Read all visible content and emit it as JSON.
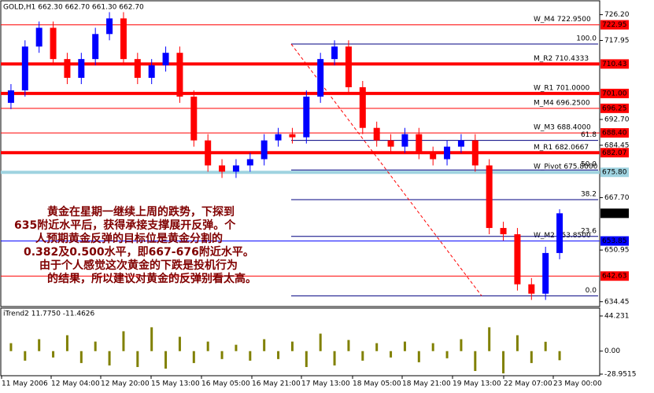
{
  "chart_data": {
    "type": "candlestick",
    "title": "GOLD,H1 662.30 662.70 661.30 662.70",
    "open": [
      698,
      702,
      716,
      722,
      712,
      706,
      712,
      720,
      725,
      712,
      706,
      710,
      714,
      700,
      686,
      678,
      676,
      678,
      680,
      686,
      688,
      687,
      700,
      712,
      716,
      703,
      690,
      686,
      684,
      688,
      682,
      680,
      684,
      686,
      678,
      658,
      656,
      640,
      637,
      650
    ],
    "high": [
      704,
      718,
      724,
      724,
      714,
      714,
      722,
      727,
      727,
      714,
      712,
      716,
      716,
      702,
      688,
      680,
      680,
      682,
      688,
      690,
      690,
      702,
      714,
      718,
      718,
      705,
      692,
      688,
      690,
      690,
      684,
      686,
      688,
      688,
      680,
      660,
      658,
      642,
      652,
      664
    ],
    "low": [
      696,
      700,
      714,
      710,
      704,
      704,
      710,
      718,
      710,
      704,
      704,
      708,
      698,
      684,
      676,
      674,
      674,
      676,
      678,
      684,
      685,
      685,
      698,
      710,
      701,
      688,
      684,
      682,
      682,
      680,
      678,
      678,
      682,
      676,
      656,
      654,
      638,
      635,
      635,
      648
    ],
    "close": [
      702,
      716,
      722,
      712,
      706,
      712,
      720,
      725,
      712,
      706,
      710,
      714,
      700,
      686,
      678,
      676,
      678,
      680,
      686,
      688,
      687,
      700,
      712,
      716,
      703,
      690,
      686,
      684,
      688,
      682,
      680,
      684,
      686,
      678,
      658,
      656,
      640,
      637,
      650,
      662.7
    ],
    "up_color": "#0000ff",
    "down_color": "#ff0000",
    "ylim": [
      633.14,
      730.38
    ],
    "yticks": [
      {
        "value": 726.2,
        "label": "726.20"
      },
      {
        "value": 717.95,
        "label": "717.95"
      },
      {
        "value": 692.7,
        "label": "692.70"
      },
      {
        "value": 684.45,
        "label": "684.45"
      },
      {
        "value": 667.7,
        "label": "667.70"
      },
      {
        "value": 650.95,
        "label": "650.95"
      },
      {
        "value": 634.45,
        "label": "634.45"
      }
    ],
    "levels": [
      {
        "value": 722.95,
        "label": "722.95",
        "color": "#ff0000",
        "width": 1,
        "text": "W_M4 722.9500"
      },
      {
        "value": 710.43,
        "label": "710.43",
        "color": "#ff0000",
        "width": 4,
        "text": "M_R2 710.4333"
      },
      {
        "value": 701,
        "label": "701.00",
        "color": "#ff0000",
        "width": 4,
        "text": "W_R1 701.0000"
      },
      {
        "value": 696.25,
        "label": "696.25",
        "color": "#ff0000",
        "width": 1,
        "text": "M_M4 696.2500"
      },
      {
        "value": 688.4,
        "label": "688.40",
        "color": "#ff0000",
        "width": 1,
        "text": "W_M3 688.4000"
      },
      {
        "value": 682.07,
        "label": "682.07",
        "color": "#ff0000",
        "width": 4,
        "text": "M_R1 682.0667"
      },
      {
        "value": 675.8,
        "label": "675.80",
        "color": "#9fd3e0",
        "width": 4,
        "text": "W_Pivot 675.8000"
      },
      {
        "value": 662.7,
        "label": "662.70",
        "color": "#000000",
        "width": 0
      },
      {
        "value": 653.85,
        "label": "653.85",
        "color": "#0000ff",
        "width": 1,
        "text": "W_M2 653.8500"
      },
      {
        "value": 642.63,
        "label": "642.63",
        "color": "#ff0000",
        "width": 1
      }
    ],
    "fib": [
      {
        "level": {
          "value": 100,
          "label": "100.0"
        },
        "price": 716.8
      },
      {
        "level": 61.8,
        "price": 686
      },
      {
        "level": {
          "value": 50,
          "label": "50.0"
        },
        "price": 676.55
      },
      {
        "level": 38.2,
        "price": 667.05
      },
      {
        "level": 23.6,
        "price": 655.3
      },
      {
        "level": {
          "value": 0,
          "label": "0.0"
        },
        "price": 636.3
      }
    ],
    "annotation": [
      "黄金在星期一继续上周的跌势，下探到",
      "635附近水平后，获得承接支撑展开反弹。个",
      "人预期黄金反弹的目标位是黄金分割的",
      "0.382及0.500水平，即667-676附近水平。",
      "由于个人感觉这次黄金的下跌是投机行为",
      "的结果，所以建议对黄金的反弹别看太高。"
    ],
    "x_labels": [
      "11 May 2006",
      "12 May 04:00",
      "12 May 20:00",
      "15 May 13:00",
      "16 May 05:00",
      "16 May 21:00",
      "17 May 13:00",
      "18 May 05:00",
      "18 May 21:00",
      "19 May 13:00",
      "22 May 07:00",
      "23 May 00:00"
    ],
    "indicator": {
      "title": "iTrend2 11.7750 -11.4626",
      "color": "#808000",
      "values": [
        10,
        -12,
        15,
        -8,
        20,
        -15,
        12,
        -18,
        25,
        -20,
        30,
        -22,
        18,
        -15,
        12,
        -10,
        8,
        -12,
        15,
        -10,
        12,
        -20,
        22,
        -18,
        14,
        -12,
        10,
        -8,
        12,
        -14,
        10,
        -9,
        15,
        -25,
        30,
        -28,
        20,
        -15,
        11.775,
        -11.4626
      ],
      "ylim": [
        -28.9515,
        44.231
      ],
      "yticks": [
        44.231,
        {
          "value": 0,
          "label": "0.00"
        },
        -28.9515
      ]
    }
  }
}
